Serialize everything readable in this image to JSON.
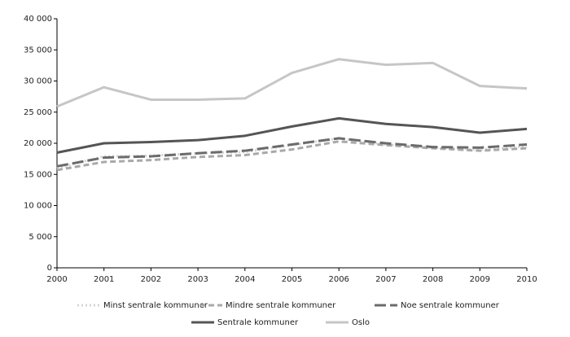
{
  "chart_data": {
    "type": "line",
    "x": [
      2000,
      2001,
      2002,
      2003,
      2004,
      2005,
      2006,
      2007,
      2008,
      2009,
      2010
    ],
    "xlim": [
      2000,
      2010
    ],
    "xticks": [
      2000,
      2001,
      2002,
      2003,
      2004,
      2005,
      2006,
      2007,
      2008,
      2009,
      2010
    ],
    "ylim": [
      0,
      40000
    ],
    "yticks": [
      0,
      {
        "value": 5000,
        "label": "5 000"
      },
      {
        "value": 10000,
        "label": "10 000"
      },
      {
        "value": 15000,
        "label": "15 000"
      },
      {
        "value": 20000,
        "label": "20 000"
      },
      {
        "value": 25000,
        "label": "25 000"
      },
      {
        "value": 30000,
        "label": "30 000"
      },
      {
        "value": 35000,
        "label": "35 000"
      },
      {
        "value": 40000,
        "label": "40 000"
      }
    ],
    "grid": false,
    "legend": "bottom",
    "series": [
      {
        "name": "Minst sentrale kommuner",
        "color": "#d4d4d4",
        "dash": "dotted",
        "values": [
          16000,
          17900,
          18000,
          18400,
          18600,
          19700,
          20800,
          19800,
          19300,
          19000,
          19500
        ]
      },
      {
        "name": "Mindre sentrale kommuner",
        "color": "#a9a9a9",
        "dash": "dashed",
        "values": [
          15700,
          17000,
          17300,
          17800,
          18100,
          19000,
          20300,
          19700,
          19200,
          18800,
          19200
        ]
      },
      {
        "name": "Noe sentrale kommuner",
        "color": "#6b6b6b",
        "dash": "longdash",
        "values": [
          16300,
          17700,
          17900,
          18400,
          18800,
          19800,
          20800,
          20000,
          19400,
          19300,
          19800
        ]
      },
      {
        "name": "Sentrale kommuner",
        "color": "#555555",
        "dash": "solid",
        "values": [
          18500,
          20000,
          20200,
          20500,
          21200,
          22700,
          24000,
          23100,
          22600,
          21700,
          22300
        ]
      },
      {
        "name": "Oslo",
        "color": "#c6c6c6",
        "dash": "solid",
        "values": [
          25900,
          29000,
          27000,
          27000,
          27200,
          31300,
          33500,
          32600,
          32900,
          29200,
          28800
        ]
      }
    ]
  }
}
